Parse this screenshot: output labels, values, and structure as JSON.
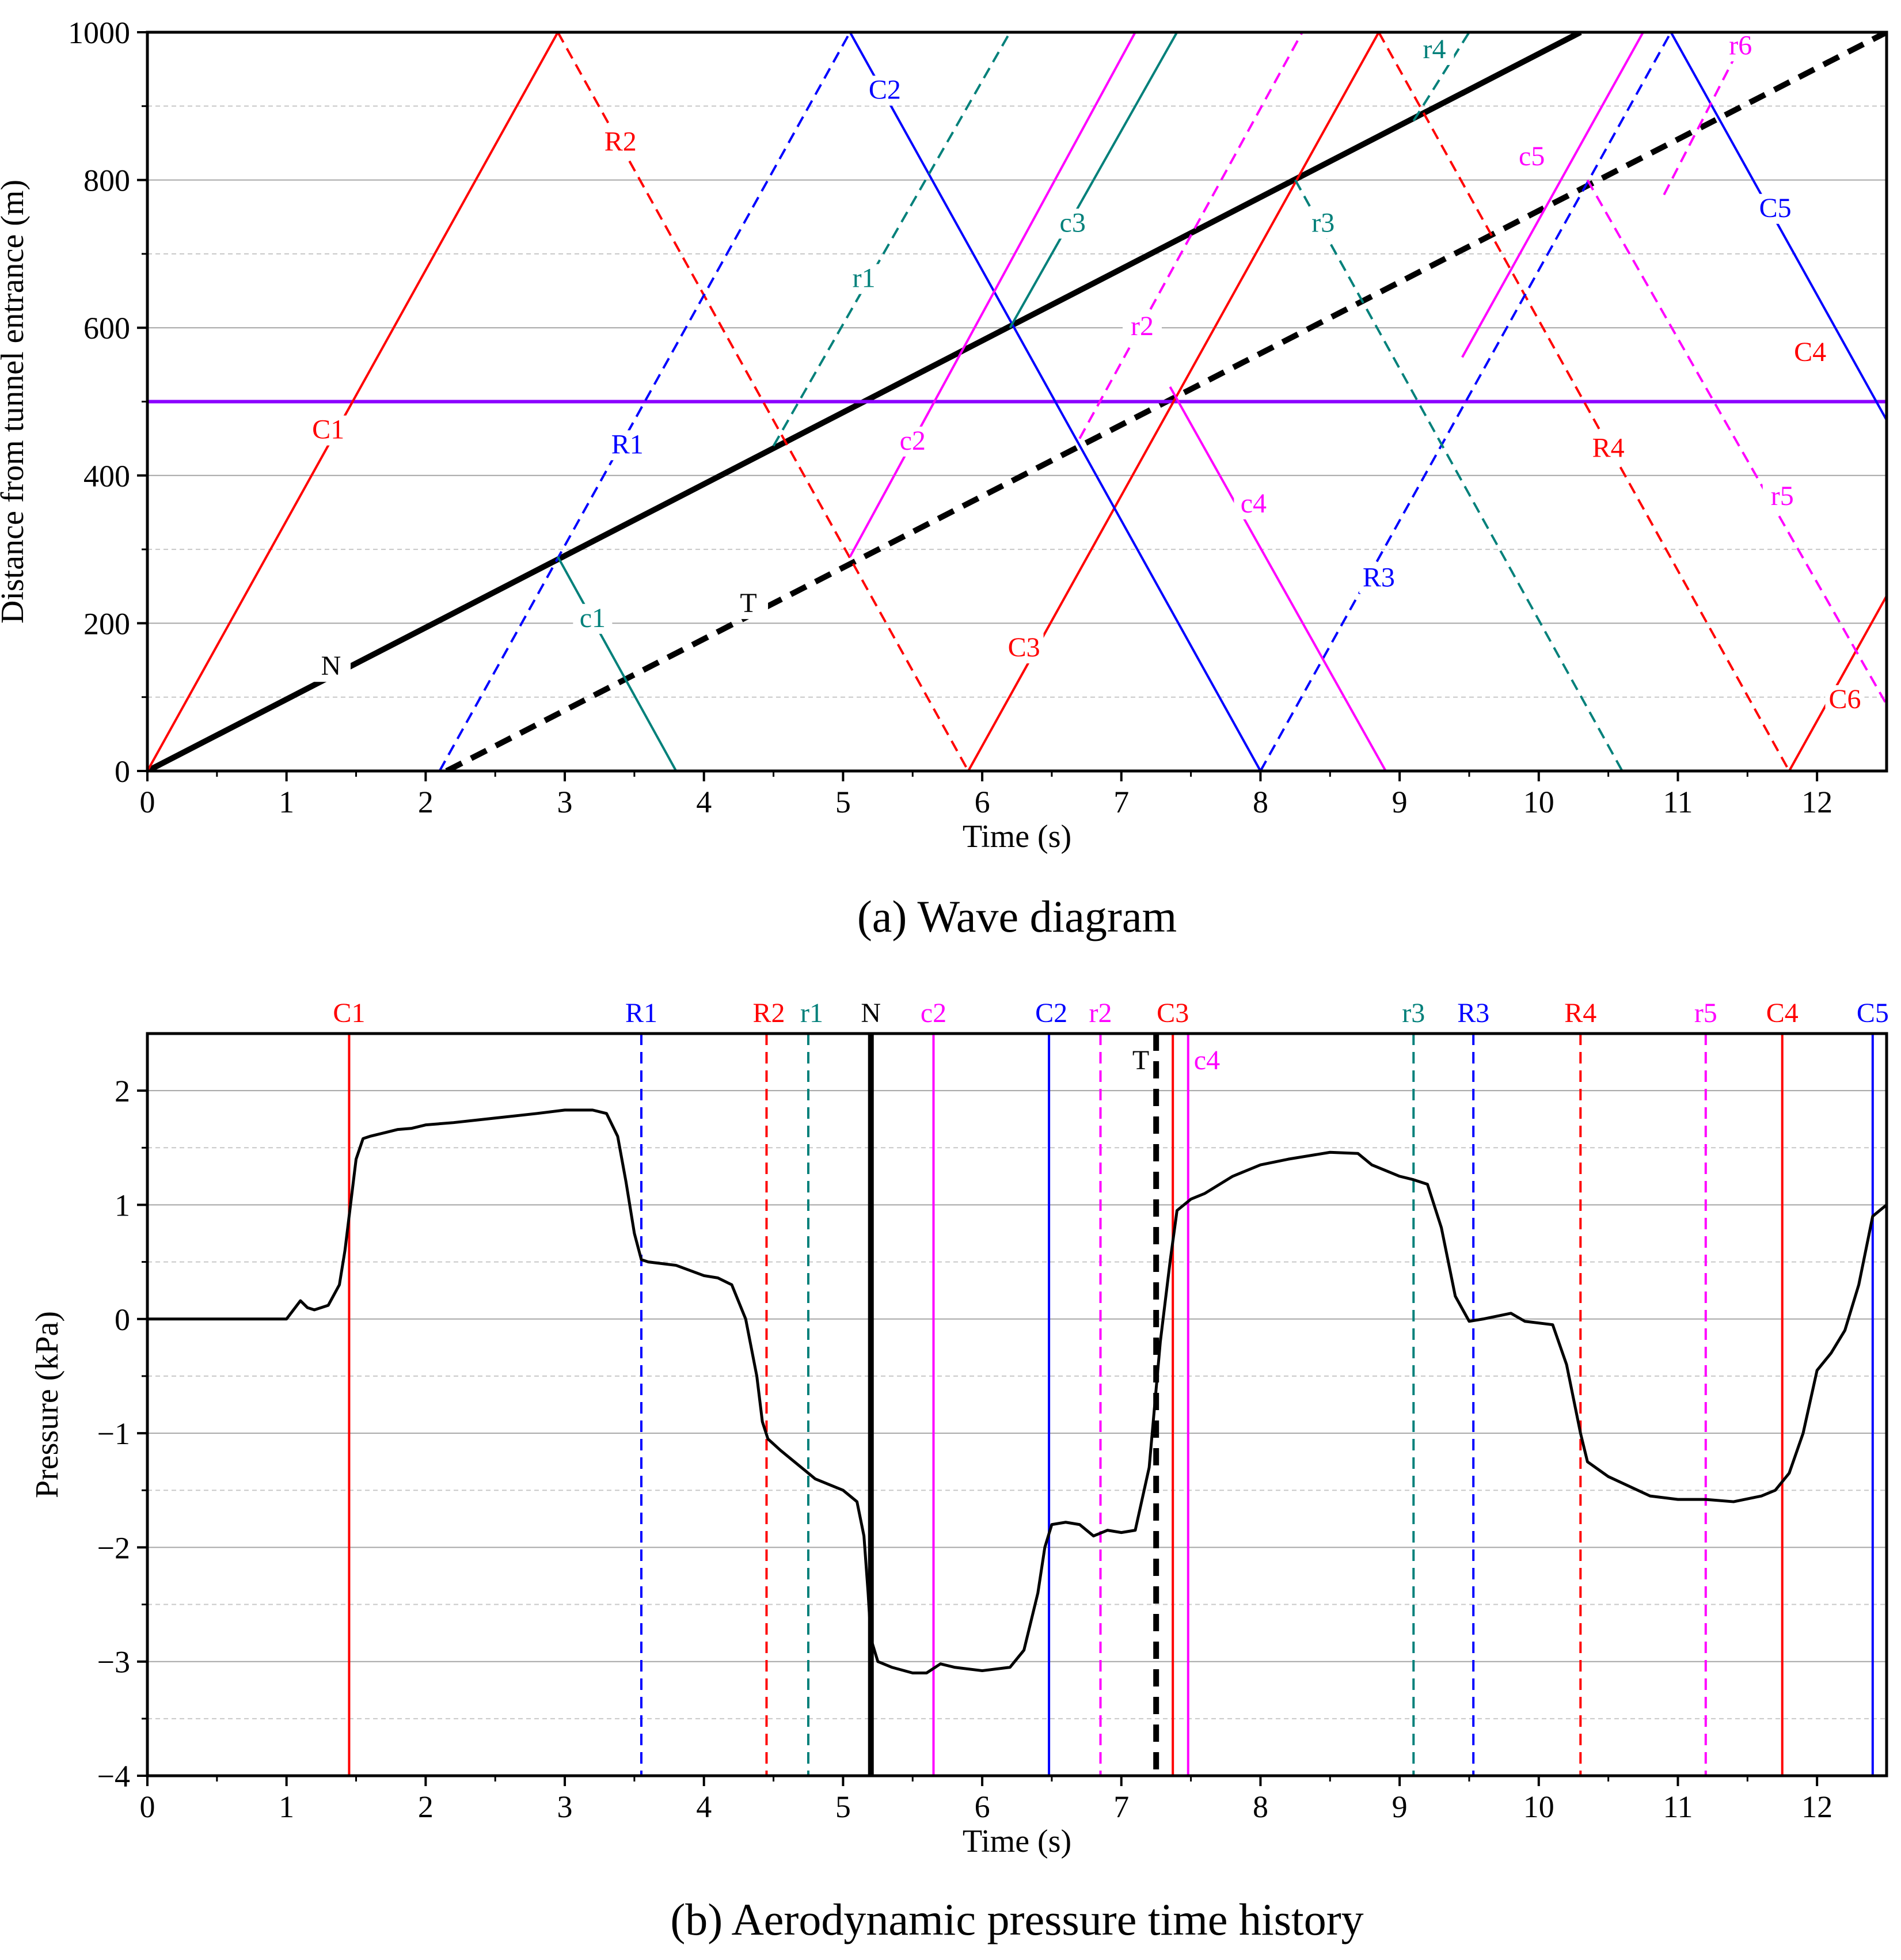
{
  "chart_data": [
    {
      "type": "line",
      "subtype": "wave-diagram",
      "caption": "(a) Wave diagram",
      "xlabel": "Time (s)",
      "ylabel": "Distance from tunnel entrance (m)",
      "xlim": [
        0,
        12.5
      ],
      "ylim": [
        0,
        1000
      ],
      "xticks": [
        0,
        1,
        2,
        3,
        4,
        5,
        6,
        7,
        8,
        9,
        10,
        11,
        12
      ],
      "yticks": [
        0,
        200,
        400,
        600,
        800,
        1000
      ],
      "grid": true,
      "colors": {
        "compression": "#ff0000",
        "rarefaction": "#0000ff",
        "c": "#ff00ff",
        "r": "#00807a",
        "train": "#000000",
        "monitor": "#8b00ff"
      },
      "series": [
        {
          "name": "N",
          "color": "#000000",
          "style": "solid",
          "width": 10,
          "points": [
            [
              0,
              0
            ],
            [
              10.3,
              1000
            ]
          ]
        },
        {
          "name": "T",
          "color": "#000000",
          "style": "dashed",
          "width": 10,
          "points": [
            [
              2.15,
              0
            ],
            [
              12.5,
              1000
            ]
          ]
        },
        {
          "name": "monitor-line",
          "color": "#8b00ff",
          "style": "solid",
          "width": 6,
          "points": [
            [
              0,
              500
            ],
            [
              12.5,
              500
            ]
          ]
        },
        {
          "name": "C1",
          "color": "#ff0000",
          "style": "solid",
          "points": [
            [
              0,
              0
            ],
            [
              2.95,
              1000
            ]
          ]
        },
        {
          "name": "R2",
          "color": "#ff0000",
          "style": "dashed",
          "points": [
            [
              2.95,
              1000
            ],
            [
              5.9,
              0
            ]
          ]
        },
        {
          "name": "C3",
          "color": "#ff0000",
          "style": "solid",
          "points": [
            [
              5.9,
              0
            ],
            [
              8.85,
              1000
            ]
          ]
        },
        {
          "name": "R4",
          "color": "#ff0000",
          "style": "dashed",
          "points": [
            [
              8.85,
              1000
            ],
            [
              11.8,
              0
            ]
          ]
        },
        {
          "name": "C6",
          "color": "#ff0000",
          "style": "solid",
          "points": [
            [
              11.8,
              0
            ],
            [
              12.5,
              237
            ]
          ]
        },
        {
          "name": "R1",
          "color": "#0000ff",
          "style": "dashed",
          "points": [
            [
              2.1,
              0
            ],
            [
              5.05,
              1000
            ]
          ]
        },
        {
          "name": "C2",
          "color": "#0000ff",
          "style": "solid",
          "points": [
            [
              5.05,
              1000
            ],
            [
              8.0,
              0
            ]
          ]
        },
        {
          "name": "R3",
          "color": "#0000ff",
          "style": "dashed",
          "points": [
            [
              8.0,
              0
            ],
            [
              10.95,
              1000
            ]
          ]
        },
        {
          "name": "C5",
          "color": "#0000ff",
          "style": "solid",
          "points": [
            [
              10.95,
              1000
            ],
            [
              12.5,
              475
            ]
          ]
        },
        {
          "name": "c4",
          "color": "#ff00ff",
          "style": "solid",
          "points": [
            [
              7.35,
              520
            ],
            [
              8.9,
              0
            ]
          ]
        },
        {
          "name": "c2",
          "color": "#ff00ff",
          "style": "solid",
          "points": [
            [
              5.05,
              290
            ],
            [
              7.1,
              1000
            ]
          ]
        },
        {
          "name": "r2",
          "color": "#ff00ff",
          "style": "dashed",
          "points": [
            [
              6.7,
              450
            ],
            [
              8.3,
              1000
            ]
          ]
        },
        {
          "name": "c5",
          "color": "#ff00ff",
          "style": "solid",
          "points": [
            [
              9.45,
              560
            ],
            [
              10.75,
              1000
            ]
          ]
        },
        {
          "name": "r5",
          "color": "#ff00ff",
          "style": "dashed",
          "points": [
            [
              10.35,
              800
            ],
            [
              12.5,
              90
            ]
          ]
        },
        {
          "name": "r6",
          "color": "#ff00ff",
          "style": "dashed",
          "points": [
            [
              10.9,
              780
            ],
            [
              11.5,
              1000
            ]
          ]
        },
        {
          "name": "c1",
          "color": "#00807a",
          "style": "solid",
          "points": [
            [
              2.95,
              290
            ],
            [
              3.8,
              0
            ]
          ]
        },
        {
          "name": "r1",
          "color": "#00807a",
          "style": "dashed",
          "points": [
            [
              4.5,
              440
            ],
            [
              6.2,
              1000
            ]
          ]
        },
        {
          "name": "c3",
          "color": "#00807a",
          "style": "solid",
          "points": [
            [
              6.2,
              600
            ],
            [
              7.4,
              1000
            ]
          ]
        },
        {
          "name": "r3",
          "color": "#00807a",
          "style": "dashed",
          "points": [
            [
              8.25,
              800
            ],
            [
              10.6,
              0
            ]
          ]
        },
        {
          "name": "r4",
          "color": "#00807a",
          "style": "dashed",
          "points": [
            [
              9.1,
              880
            ],
            [
              9.5,
              1000
            ]
          ]
        }
      ],
      "labels": [
        {
          "text": "C1",
          "x": 1.3,
          "y": 450,
          "color": "#ff0000"
        },
        {
          "text": "R2",
          "x": 3.4,
          "y": 840,
          "color": "#ff0000"
        },
        {
          "text": "C3",
          "x": 6.3,
          "y": 155,
          "color": "#ff0000"
        },
        {
          "text": "R4",
          "x": 10.5,
          "y": 425,
          "color": "#ff0000"
        },
        {
          "text": "C4",
          "x": 11.95,
          "y": 555,
          "color": "#ff0000"
        },
        {
          "text": "C6",
          "x": 12.2,
          "y": 85,
          "color": "#ff0000"
        },
        {
          "text": "R1",
          "x": 3.45,
          "y": 430,
          "color": "#0000ff"
        },
        {
          "text": "C2",
          "x": 5.3,
          "y": 910,
          "color": "#0000ff"
        },
        {
          "text": "R3",
          "x": 8.85,
          "y": 250,
          "color": "#0000ff"
        },
        {
          "text": "C5",
          "x": 11.7,
          "y": 750,
          "color": "#0000ff"
        },
        {
          "text": "c1",
          "x": 3.2,
          "y": 195,
          "color": "#00807a"
        },
        {
          "text": "r1",
          "x": 5.15,
          "y": 655,
          "color": "#00807a"
        },
        {
          "text": "c3",
          "x": 6.65,
          "y": 730,
          "color": "#00807a"
        },
        {
          "text": "r3",
          "x": 8.45,
          "y": 730,
          "color": "#00807a"
        },
        {
          "text": "r4",
          "x": 9.25,
          "y": 965,
          "color": "#00807a"
        },
        {
          "text": "c2",
          "x": 5.5,
          "y": 435,
          "color": "#ff00ff"
        },
        {
          "text": "r2",
          "x": 7.15,
          "y": 590,
          "color": "#ff00ff"
        },
        {
          "text": "c4",
          "x": 7.95,
          "y": 350,
          "color": "#ff00ff"
        },
        {
          "text": "c5",
          "x": 9.95,
          "y": 820,
          "color": "#ff00ff"
        },
        {
          "text": "r5",
          "x": 11.75,
          "y": 360,
          "color": "#ff00ff"
        },
        {
          "text": "r6",
          "x": 11.45,
          "y": 970,
          "color": "#ff00ff"
        },
        {
          "text": "N",
          "x": 1.32,
          "y": 130,
          "color": "#000000"
        },
        {
          "text": "T",
          "x": 4.32,
          "y": 215,
          "color": "#000000"
        }
      ]
    },
    {
      "type": "line",
      "subtype": "pressure-time-history",
      "caption": "(b) Aerodynamic pressure time history",
      "xlabel": "Time (s)",
      "ylabel": "Pressure (kPa)",
      "xlim": [
        0,
        12.5
      ],
      "ylim": [
        -4,
        2.5
      ],
      "xticks": [
        0,
        1,
        2,
        3,
        4,
        5,
        6,
        7,
        8,
        9,
        10,
        11,
        12
      ],
      "yticks": [
        -4,
        -3,
        -2,
        -1,
        0,
        1,
        2
      ],
      "ytick_labels": [
        "−4",
        "−3",
        "−2",
        "−1",
        "0",
        "1",
        "2"
      ],
      "grid": true,
      "series": [
        {
          "name": "pressure",
          "color": "#000000",
          "x": [
            0,
            1.0,
            1.05,
            1.1,
            1.15,
            1.2,
            1.3,
            1.38,
            1.42,
            1.46,
            1.5,
            1.55,
            1.6,
            1.7,
            1.8,
            1.9,
            2.0,
            2.2,
            2.5,
            2.8,
            3.0,
            3.2,
            3.3,
            3.38,
            3.44,
            3.5,
            3.55,
            3.6,
            3.8,
            4.0,
            4.1,
            4.2,
            4.3,
            4.38,
            4.42,
            4.46,
            4.55,
            4.7,
            4.8,
            5.0,
            5.1,
            5.15,
            5.18,
            5.2,
            5.25,
            5.35,
            5.5,
            5.6,
            5.7,
            5.8,
            6.0,
            6.2,
            6.3,
            6.4,
            6.45,
            6.5,
            6.6,
            6.7,
            6.8,
            6.9,
            7.0,
            7.1,
            7.2,
            7.28,
            7.35,
            7.4,
            7.5,
            7.6,
            7.8,
            8.0,
            8.2,
            8.5,
            8.7,
            8.8,
            9.0,
            9.1,
            9.2,
            9.3,
            9.4,
            9.5,
            9.6,
            9.8,
            9.9,
            10.1,
            10.2,
            10.3,
            10.35,
            10.5,
            10.8,
            11.0,
            11.2,
            11.4,
            11.6,
            11.7,
            11.8,
            11.9,
            12.0,
            12.1,
            12.2,
            12.3,
            12.4,
            12.5
          ],
          "y": [
            0,
            0,
            0.08,
            0.16,
            0.1,
            0.08,
            0.12,
            0.3,
            0.6,
            1.0,
            1.4,
            1.58,
            1.6,
            1.63,
            1.66,
            1.67,
            1.7,
            1.72,
            1.76,
            1.8,
            1.83,
            1.83,
            1.8,
            1.6,
            1.2,
            0.75,
            0.52,
            0.5,
            0.47,
            0.38,
            0.36,
            0.3,
            0.0,
            -0.5,
            -0.9,
            -1.05,
            -1.15,
            -1.3,
            -1.4,
            -1.5,
            -1.6,
            -1.9,
            -2.4,
            -2.8,
            -3.0,
            -3.05,
            -3.1,
            -3.1,
            -3.02,
            -3.05,
            -3.08,
            -3.05,
            -2.9,
            -2.4,
            -2.0,
            -1.8,
            -1.78,
            -1.8,
            -1.9,
            -1.85,
            -1.87,
            -1.85,
            -1.3,
            -0.2,
            0.5,
            0.95,
            1.05,
            1.1,
            1.25,
            1.35,
            1.4,
            1.46,
            1.45,
            1.35,
            1.25,
            1.22,
            1.18,
            0.8,
            0.2,
            -0.02,
            0.0,
            0.05,
            -0.02,
            -0.05,
            -0.4,
            -1.0,
            -1.25,
            -1.38,
            -1.55,
            -1.58,
            -1.58,
            -1.6,
            -1.55,
            -1.5,
            -1.35,
            -1.0,
            -0.45,
            -0.3,
            -0.1,
            0.3,
            0.9,
            1.0
          ]
        },
        {
          "name": "C1",
          "x": 1.45,
          "color": "#ff0000",
          "style": "solid"
        },
        {
          "name": "R1",
          "x": 3.55,
          "color": "#0000ff",
          "style": "dashed"
        },
        {
          "name": "R2",
          "x": 4.45,
          "color": "#ff0000",
          "style": "dashed"
        },
        {
          "name": "r1",
          "x": 4.75,
          "color": "#00807a",
          "style": "dashed"
        },
        {
          "name": "N",
          "x": 5.2,
          "color": "#000000",
          "style": "solid-bold"
        },
        {
          "name": "c2",
          "x": 5.65,
          "color": "#ff00ff",
          "style": "solid"
        },
        {
          "name": "C2",
          "x": 6.48,
          "color": "#0000ff",
          "style": "solid"
        },
        {
          "name": "r2",
          "x": 6.85,
          "color": "#ff00ff",
          "style": "dashed"
        },
        {
          "name": "T",
          "x": 7.25,
          "color": "#000000",
          "style": "dashed-bold"
        },
        {
          "name": "C3",
          "x": 7.37,
          "color": "#ff0000",
          "style": "solid"
        },
        {
          "name": "c4",
          "x": 7.48,
          "color": "#ff00ff",
          "style": "solid"
        },
        {
          "name": "r3",
          "x": 9.1,
          "color": "#00807a",
          "style": "dashed"
        },
        {
          "name": "R3",
          "x": 9.53,
          "color": "#0000ff",
          "style": "dashed"
        },
        {
          "name": "R4",
          "x": 10.3,
          "color": "#ff0000",
          "style": "dashed"
        },
        {
          "name": "r5",
          "x": 11.2,
          "color": "#ff00ff",
          "style": "dashed"
        },
        {
          "name": "C4",
          "x": 11.75,
          "color": "#ff0000",
          "style": "solid"
        },
        {
          "name": "C5",
          "x": 12.4,
          "color": "#0000ff",
          "style": "solid"
        }
      ]
    }
  ]
}
